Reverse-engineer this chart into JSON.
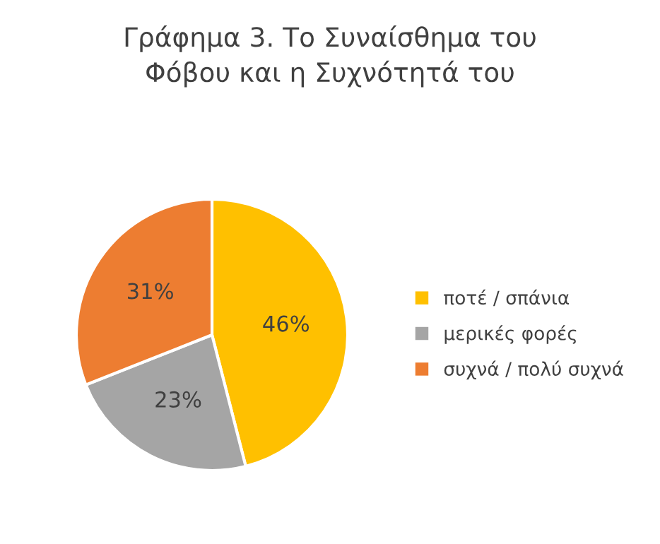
{
  "chart_data": {
    "type": "pie",
    "title": "Γράφημα 3. Το Συναίσθημα του\nΦόβου και η Συχνότητά του",
    "categories": [
      "ποτέ / σπάνια",
      "μερικές φορές",
      "συχνά / πολύ συχνά"
    ],
    "values": [
      46,
      23,
      31
    ],
    "colors": [
      "#ffc000",
      "#a5a5a5",
      "#ed7d31"
    ],
    "value_labels": [
      "46%",
      "23%",
      "31%"
    ],
    "legend": "right"
  }
}
